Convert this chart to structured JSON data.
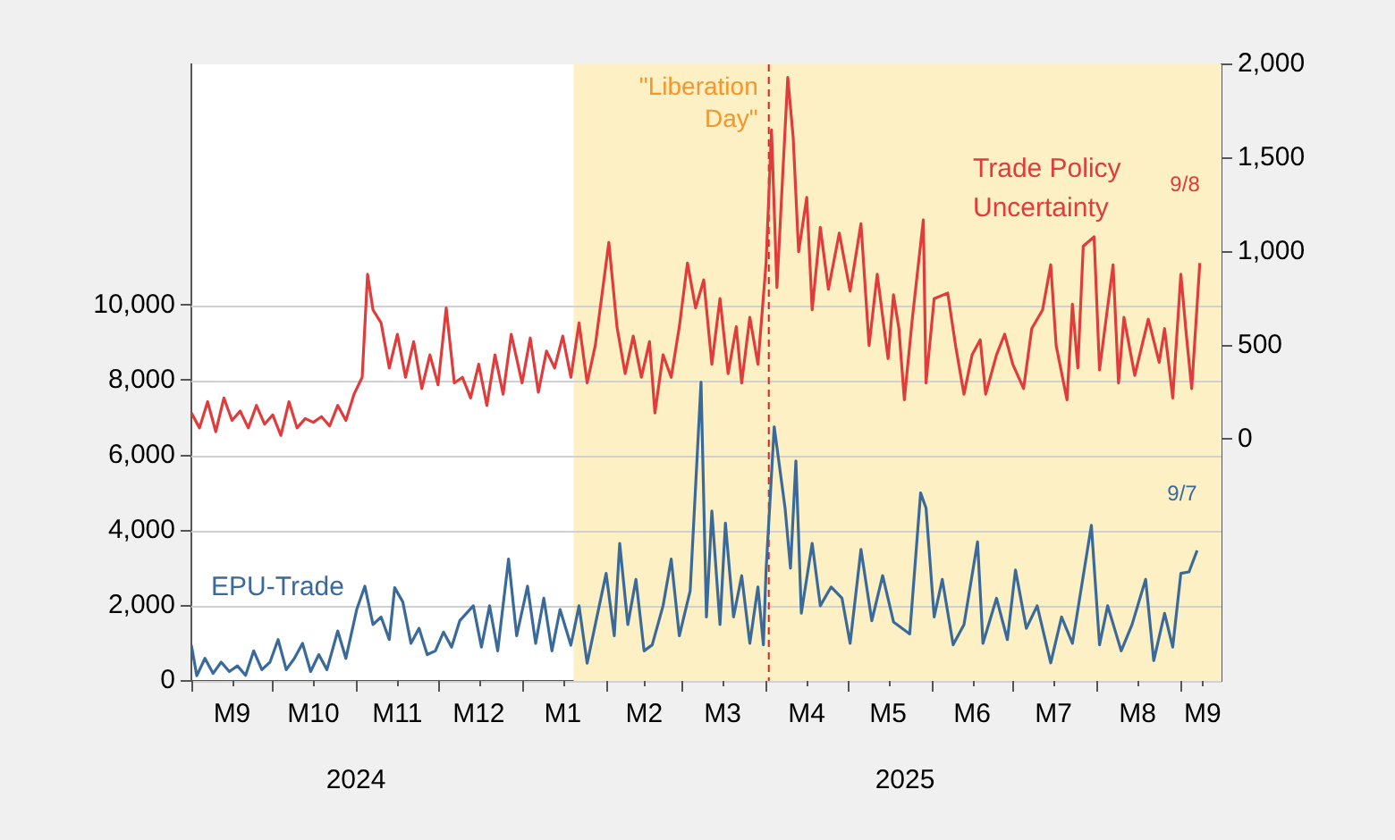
{
  "chart_data": {
    "type": "line",
    "series": [
      {
        "name": "Trade Policy Uncertainty",
        "color": "#e03c3c",
        "axis": "y2",
        "x": [
          "2024-09-01",
          "2024-09-04",
          "2024-09-07",
          "2024-09-10",
          "2024-09-13",
          "2024-09-16",
          "2024-09-19",
          "2024-09-22",
          "2024-09-25",
          "2024-09-28",
          "2024-10-01",
          "2024-10-04",
          "2024-10-07",
          "2024-10-10",
          "2024-10-13",
          "2024-10-16",
          "2024-10-19",
          "2024-10-22",
          "2024-10-25",
          "2024-10-28",
          "2024-10-31",
          "2024-11-03",
          "2024-11-05",
          "2024-11-07",
          "2024-11-10",
          "2024-11-13",
          "2024-11-16",
          "2024-11-19",
          "2024-11-22",
          "2024-11-25",
          "2024-11-28",
          "2024-12-01",
          "2024-12-04",
          "2024-12-07",
          "2024-12-10",
          "2024-12-13",
          "2024-12-16",
          "2024-12-19",
          "2024-12-22",
          "2024-12-25",
          "2024-12-28",
          "2025-01-01",
          "2025-01-04",
          "2025-01-07",
          "2025-01-10",
          "2025-01-13",
          "2025-01-16",
          "2025-01-19",
          "2025-01-22",
          "2025-01-25",
          "2025-01-28",
          "2025-02-02",
          "2025-02-05",
          "2025-02-08",
          "2025-02-11",
          "2025-02-14",
          "2025-02-17",
          "2025-02-19",
          "2025-02-22",
          "2025-02-25",
          "2025-02-28",
          "2025-03-03",
          "2025-03-06",
          "2025-03-09",
          "2025-03-12",
          "2025-03-15",
          "2025-03-18",
          "2025-03-21",
          "2025-03-23",
          "2025-03-26",
          "2025-03-29",
          "2025-04-01",
          "2025-04-03",
          "2025-04-05",
          "2025-04-09",
          "2025-04-11",
          "2025-04-13",
          "2025-04-16",
          "2025-04-18",
          "2025-04-21",
          "2025-04-24",
          "2025-04-28",
          "2025-05-02",
          "2025-05-06",
          "2025-05-09",
          "2025-05-12",
          "2025-05-16",
          "2025-05-18",
          "2025-05-20",
          "2025-05-22",
          "2025-05-25",
          "2025-05-29",
          "2025-05-30",
          "2025-06-02",
          "2025-06-07",
          "2025-06-10",
          "2025-06-13",
          "2025-06-16",
          "2025-06-19",
          "2025-06-21",
          "2025-06-25",
          "2025-06-28",
          "2025-07-01",
          "2025-07-05",
          "2025-07-08",
          "2025-07-12",
          "2025-07-15",
          "2025-07-17",
          "2025-07-21",
          "2025-07-23",
          "2025-07-25",
          "2025-07-27",
          "2025-07-31",
          "2025-08-02",
          "2025-08-07",
          "2025-08-09",
          "2025-08-11",
          "2025-08-15",
          "2025-08-20",
          "2025-08-24",
          "2025-08-26",
          "2025-08-29",
          "2025-09-01",
          "2025-09-03",
          "2025-09-05",
          "2025-09-08"
        ],
        "values": [
          140,
          60,
          200,
          40,
          220,
          100,
          150,
          60,
          180,
          80,
          130,
          20,
          200,
          60,
          110,
          90,
          120,
          70,
          180,
          100,
          240,
          330,
          880,
          690,
          620,
          380,
          560,
          330,
          520,
          270,
          450,
          290,
          700,
          300,
          330,
          220,
          400,
          180,
          450,
          240,
          560,
          300,
          540,
          250,
          470,
          380,
          550,
          330,
          620,
          300,
          500,
          1050,
          600,
          350,
          550,
          330,
          520,
          140,
          450,
          330,
          600,
          940,
          700,
          850,
          400,
          750,
          350,
          600,
          300,
          650,
          400,
          940,
          1650,
          810,
          1930,
          1610,
          1000,
          1290,
          690,
          1130,
          800,
          1100,
          790,
          1150,
          500,
          880,
          430,
          770,
          590,
          210,
          650,
          1170,
          300,
          750,
          780,
          490,
          240,
          450,
          530,
          240,
          450,
          560,
          400,
          270,
          590,
          690,
          930,
          500,
          210,
          720,
          380,
          1030,
          1080,
          370,
          930,
          300,
          650,
          340,
          640,
          410,
          590,
          220,
          880,
          560,
          270,
          940
        ]
      },
      {
        "name": "EPU-Trade",
        "color": "#3a6a9a",
        "x": [
          "2024-09-01",
          "2024-09-03",
          "2024-09-06",
          "2024-09-09",
          "2024-09-12",
          "2024-09-15",
          "2024-09-18",
          "2024-09-21",
          "2024-09-24",
          "2024-09-27",
          "2024-09-30",
          "2024-10-03",
          "2024-10-06",
          "2024-10-09",
          "2024-10-12",
          "2024-10-15",
          "2024-10-18",
          "2024-10-21",
          "2024-10-25",
          "2024-10-28",
          "2024-11-01",
          "2024-11-04",
          "2024-11-07",
          "2024-11-10",
          "2024-11-13",
          "2024-11-15",
          "2024-11-18",
          "2024-11-21",
          "2024-11-24",
          "2024-11-27",
          "2024-11-30",
          "2024-12-03",
          "2024-12-06",
          "2024-12-09",
          "2024-12-14",
          "2024-12-17",
          "2024-12-20",
          "2024-12-23",
          "2024-12-27",
          "2024-12-30",
          "2025-01-03",
          "2025-01-06",
          "2025-01-09",
          "2025-01-12",
          "2025-01-15",
          "2025-01-19",
          "2025-01-22",
          "2025-01-25",
          "2025-01-28",
          "2025-02-01",
          "2025-02-04",
          "2025-02-06",
          "2025-02-09",
          "2025-02-12",
          "2025-02-15",
          "2025-02-18",
          "2025-02-22",
          "2025-02-25",
          "2025-02-28",
          "2025-03-04",
          "2025-03-08",
          "2025-03-10",
          "2025-03-12",
          "2025-03-15",
          "2025-03-17",
          "2025-03-20",
          "2025-03-23",
          "2025-03-26",
          "2025-03-29",
          "2025-03-31",
          "2025-04-01",
          "2025-04-04",
          "2025-04-08",
          "2025-04-10",
          "2025-04-12",
          "2025-04-14",
          "2025-04-18",
          "2025-04-21",
          "2025-04-25",
          "2025-04-29",
          "2025-05-02",
          "2025-05-06",
          "2025-05-10",
          "2025-05-14",
          "2025-05-18",
          "2025-05-24",
          "2025-05-28",
          "2025-05-30",
          "2025-06-02",
          "2025-06-05",
          "2025-06-09",
          "2025-06-13",
          "2025-06-18",
          "2025-06-20",
          "2025-06-25",
          "2025-06-29",
          "2025-07-02",
          "2025-07-06",
          "2025-07-10",
          "2025-07-15",
          "2025-07-19",
          "2025-07-23",
          "2025-07-30",
          "2025-08-02",
          "2025-08-05",
          "2025-08-10",
          "2025-08-14",
          "2025-08-19",
          "2025-08-22",
          "2025-08-26",
          "2025-08-29",
          "2025-09-01",
          "2025-09-04",
          "2025-09-07"
        ],
        "values": [
          950,
          140,
          600,
          200,
          500,
          250,
          400,
          150,
          800,
          300,
          500,
          1100,
          300,
          600,
          1000,
          250,
          700,
          300,
          1330,
          600,
          1900,
          2520,
          1500,
          1700,
          1100,
          2480,
          2100,
          1000,
          1400,
          700,
          800,
          1300,
          900,
          1600,
          2000,
          900,
          2000,
          800,
          3240,
          1200,
          2520,
          1000,
          2200,
          800,
          1900,
          950,
          2000,
          470,
          1500,
          2860,
          1200,
          3660,
          1500,
          2700,
          800,
          960,
          2000,
          3240,
          1200,
          2400,
          7950,
          1700,
          4520,
          1500,
          4200,
          1700,
          2800,
          1000,
          2500,
          960,
          2950,
          6760,
          4600,
          3000,
          5850,
          1800,
          3660,
          2000,
          2500,
          2200,
          1000,
          3500,
          1600,
          2800,
          1570,
          1250,
          5000,
          4600,
          1700,
          2700,
          960,
          1500,
          3700,
          1000,
          2200,
          1100,
          2950,
          1400,
          2000,
          480,
          1700,
          1000,
          4140,
          960,
          2000,
          800,
          1500,
          2700,
          540,
          1800,
          900,
          2860,
          2900,
          3470
        ]
      }
    ],
    "xlim": [
      "2024-09-01",
      "2025-09-16"
    ],
    "xticks": [
      {
        "value": "2024-09-01",
        "label": null
      },
      {
        "value": "2024-09-16",
        "label": "M9"
      },
      {
        "value": "2024-10-01",
        "label": null
      },
      {
        "value": "2024-10-16",
        "label": "M10"
      },
      {
        "value": "2024-11-01",
        "label": null
      },
      {
        "value": "2024-11-16",
        "label": "M11"
      },
      {
        "value": "2024-12-01",
        "label": null
      },
      {
        "value": "2024-12-16",
        "label": "M12"
      },
      {
        "value": "2025-01-01",
        "label": null
      },
      {
        "value": "2025-01-16",
        "label": "M1"
      },
      {
        "value": "2025-02-01",
        "label": null
      },
      {
        "value": "2025-02-15",
        "label": "M2"
      },
      {
        "value": "2025-03-01",
        "label": null
      },
      {
        "value": "2025-03-16",
        "label": "M3"
      },
      {
        "value": "2025-04-01",
        "label": null
      },
      {
        "value": "2025-04-16",
        "label": "M4"
      },
      {
        "value": "2025-05-01",
        "label": null
      },
      {
        "value": "2025-05-16",
        "label": "M5"
      },
      {
        "value": "2025-06-01",
        "label": null
      },
      {
        "value": "2025-06-16",
        "label": "M6"
      },
      {
        "value": "2025-07-01",
        "label": null
      },
      {
        "value": "2025-07-16",
        "label": "M7"
      },
      {
        "value": "2025-08-01",
        "label": null
      },
      {
        "value": "2025-08-16",
        "label": "M8"
      },
      {
        "value": "2025-09-01",
        "label": null
      },
      {
        "value": "2025-09-09",
        "label": "M9"
      }
    ],
    "ylim": [
      0,
      16400
    ],
    "yticks": [
      0,
      {
        "value": 2000,
        "label": "2,000"
      },
      {
        "value": 4000,
        "label": "4,000"
      },
      {
        "value": 6000,
        "label": "6,000"
      },
      {
        "value": 8000,
        "label": "8,000"
      },
      {
        "value": 10000,
        "label": "10,000"
      }
    ],
    "y2lim": [
      -1290,
      2000
    ],
    "y2ticks": [
      0,
      500,
      {
        "value": 1000,
        "label": "1,000"
      },
      {
        "value": 1500,
        "label": "1,500"
      },
      {
        "value": 2000,
        "label": "2,000"
      }
    ],
    "bands": [
      {
        "axis": "x",
        "from": "2025-01-20",
        "to": "2025-09-16",
        "color": "#fcf0c4"
      }
    ],
    "ref_lines": [
      {
        "axis": "x",
        "value": "2025-04-02",
        "label": "\"Liberation Day\"",
        "color": "#e02020",
        "line_style": "dashed"
      }
    ],
    "annotations": [
      "9/8",
      "9/7",
      "2024",
      "2025"
    ],
    "grid": "y",
    "legend": false,
    "marker": "none",
    "line_style": "solid"
  }
}
